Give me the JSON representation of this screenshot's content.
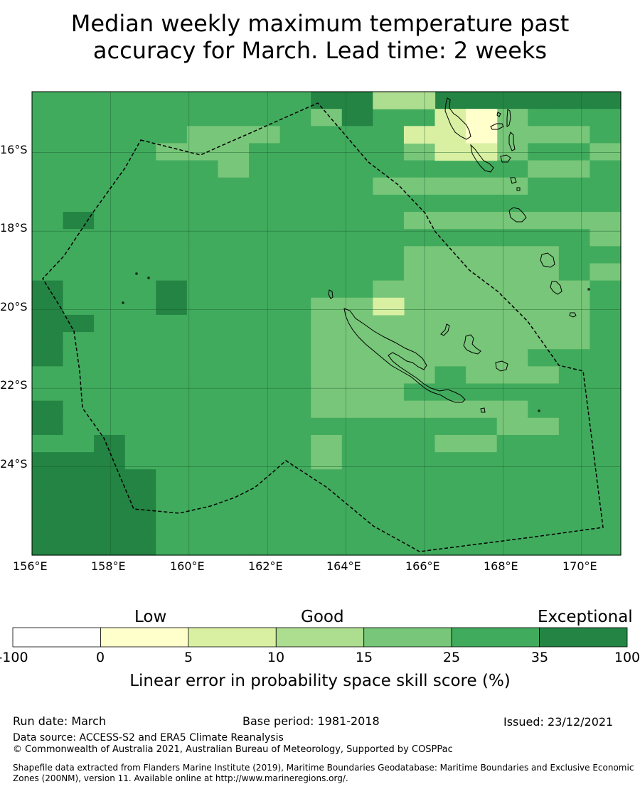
{
  "title": {
    "line1": "Median weekly maximum temperature past",
    "line2": "accuracy for March. Lead time: 2 weeks"
  },
  "map": {
    "lon_range": [
      156,
      171
    ],
    "lat_range": [
      -26.25,
      -14.45
    ],
    "cell_size_deg": 0.8333,
    "lat_labels": [
      "16°S",
      "18°S",
      "20°S",
      "22°S",
      "24°S"
    ],
    "lon_labels": [
      "156°E",
      "158°E",
      "160°E",
      "162°E",
      "164°E",
      "166°E",
      "168°E",
      "170°E"
    ],
    "grid_classes_top_to_bottom": [
      "3333333334422444444",
      "3333333332433332333",
      "3333322233333322223",
      "3333222333332222332",
      "3333332333333333223",
      "3333333333322222333",
      "3333333333333333333",
      "3433333333332222222",
      "3333333333333333332",
      "3333333333332222233",
      "3333333333332222232",
      "4333433333322222223",
      "4333433332222222223",
      "4433333332222222223",
      "4333333332222222223",
      "4333333332222222333",
      "3333333332222322233",
      "3333333332223333333",
      "4333333332222222333",
      "4333333333333332233",
      "3343333332333223333",
      "4443333332333333333",
      "4444333333333333333",
      "4444333333333333333",
      "4444333333333333333",
      "4444333333333333333",
      "4444333333333333333"
    ]
  },
  "colorbar": {
    "categories": [
      "Low",
      "Good",
      "Exceptional"
    ],
    "ticks": [
      "-100",
      "0",
      "5",
      "10",
      "15",
      "25",
      "35",
      "100"
    ],
    "colors": [
      "#ffffff",
      "#ffffcc",
      "#d9f0a3",
      "#addd8e",
      "#78c679",
      "#41ab5d",
      "#238443"
    ],
    "label": "Linear error in probability space skill score (%)"
  },
  "footer": {
    "run_date": "Run date: March",
    "base_period": "Base period: 1981-2018",
    "issued": "Issued: 23/12/2021",
    "data_source": "Data source: ACCESS-S2 and ERA5 Climate Reanalysis",
    "copyright": "© Commonwealth of Australia 2021, Australian Bureau of Meteorology, Supported by COSPPac",
    "shapefile_line1": "Shapefile data extracted from Flanders Marine Institute (2019), Maritime Boundaries Geodatabase: Maritime Boundaries and Exclusive Economic",
    "shapefile_line2": "Zones (200NM), version 11. Available online at http://www.marineregions.org/."
  }
}
